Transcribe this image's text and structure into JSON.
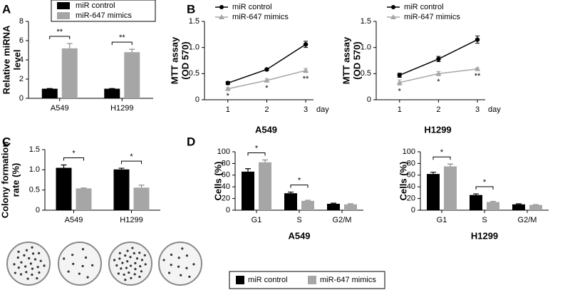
{
  "chart_data": [
    {
      "type": "bar",
      "panel": "A",
      "ylabel": [
        "Relative miRNA",
        "level"
      ],
      "categories": [
        "A549",
        "H1299"
      ],
      "series": [
        {
          "name": "miR control",
          "color": "#000000",
          "values": [
            1,
            1
          ],
          "errors": [
            0.02,
            0.02
          ]
        },
        {
          "name": "miR-647 mimics",
          "color": "#a6a6a6",
          "values": [
            5.2,
            4.8
          ],
          "errors": [
            0.5,
            0.3
          ]
        }
      ],
      "significance": [
        "**",
        "**"
      ],
      "ylim": [
        0,
        8
      ],
      "yticks": [
        0,
        2,
        4,
        6,
        8
      ],
      "legend": "top"
    },
    {
      "type": "line",
      "panel": "B",
      "title": "A549",
      "ylabel": [
        "MTT assay",
        "(OD 570)"
      ],
      "xlabel": "day",
      "x": [
        1,
        2,
        3
      ],
      "series": [
        {
          "name": "miR control",
          "color": "#000000",
          "values": [
            0.32,
            0.58,
            1.06
          ],
          "errors": [
            0.03,
            0.02,
            0.06
          ]
        },
        {
          "name": "miR-647 mimics",
          "color": "#a6a6a6",
          "values": [
            0.21,
            0.37,
            0.56
          ],
          "errors": [
            0.02,
            0.03,
            0.04
          ]
        }
      ],
      "significance": [
        "*",
        "*",
        "**"
      ],
      "xlim": [
        0.4,
        3.2
      ],
      "xticks": [
        1,
        2,
        3
      ],
      "ylim": [
        0,
        1.5
      ],
      "yticks": [
        0,
        0.5,
        {
          "value": 1,
          "label": "1.0"
        },
        1.5
      ],
      "legend": "upper left"
    },
    {
      "type": "line",
      "title": "H1299",
      "ylabel": [
        "MTT assay",
        "(OD 570)"
      ],
      "xlabel": "day",
      "x": [
        1,
        2,
        3
      ],
      "series": [
        {
          "name": "miR control",
          "color": "#000000",
          "values": [
            0.47,
            0.78,
            1.15
          ],
          "errors": [
            0.04,
            0.05,
            0.07
          ]
        },
        {
          "name": "miR-647 mimics",
          "color": "#a6a6a6",
          "values": [
            0.33,
            0.5,
            0.59
          ],
          "errors": [
            0.05,
            0.04,
            0.02
          ]
        }
      ],
      "significance": [
        "*",
        "*",
        "**"
      ],
      "xlim": [
        0.4,
        3.2
      ],
      "xticks": [
        1,
        2,
        3
      ],
      "ylim": [
        0,
        1.5
      ],
      "yticks": [
        0,
        0.5,
        {
          "value": 1,
          "label": "1.0"
        },
        1.5
      ],
      "legend": "upper left"
    },
    {
      "type": "bar",
      "panel": "C",
      "ylabel": [
        "Colony formation",
        "rate (%)"
      ],
      "categories": [
        "A549",
        "H1299"
      ],
      "series": [
        {
          "color": "#000000",
          "values": [
            1.05,
            1.01
          ],
          "errors": [
            0.07,
            0.03
          ]
        },
        {
          "color": "#a6a6a6",
          "values": [
            0.54,
            0.56
          ],
          "errors": [
            0.01,
            0.06
          ]
        }
      ],
      "significance": [
        "*",
        "*"
      ],
      "ylim": [
        0,
        1.5
      ],
      "yticks": [
        0,
        0.5,
        {
          "value": 1,
          "label": "1.0"
        },
        1.5
      ]
    },
    {
      "type": "bar",
      "panel": "D",
      "title": "A549",
      "ylabel": [
        "Cells (%)"
      ],
      "categories": [
        "G1",
        "S",
        "G2/M"
      ],
      "series": [
        {
          "name": "miR control",
          "color": "#000000",
          "values": [
            66,
            29,
            11
          ],
          "errors": [
            5,
            2,
            1
          ]
        },
        {
          "name": "miR-647 mimics",
          "color": "#a6a6a6",
          "values": [
            82,
            16,
            10
          ],
          "errors": [
            4,
            1,
            1
          ]
        }
      ],
      "significance": [
        "*",
        "*",
        null
      ],
      "ylim": [
        0,
        100
      ],
      "yticks": [
        0,
        20,
        40,
        60,
        80,
        100
      ],
      "legend": "bottom"
    },
    {
      "type": "bar",
      "title": "H1299",
      "ylabel": [
        "Cells (%)"
      ],
      "categories": [
        "G1",
        "S",
        "G2/M"
      ],
      "series": [
        {
          "color": "#000000",
          "values": [
            62,
            26,
            10
          ],
          "errors": [
            3,
            2,
            1
          ]
        },
        {
          "color": "#a6a6a6",
          "values": [
            75,
            14,
            9
          ],
          "errors": [
            4,
            1,
            0.5
          ]
        }
      ],
      "significance": [
        "*",
        "*",
        null
      ],
      "ylim": [
        0,
        100
      ],
      "yticks": [
        0,
        20,
        40,
        60,
        80,
        100
      ]
    }
  ]
}
